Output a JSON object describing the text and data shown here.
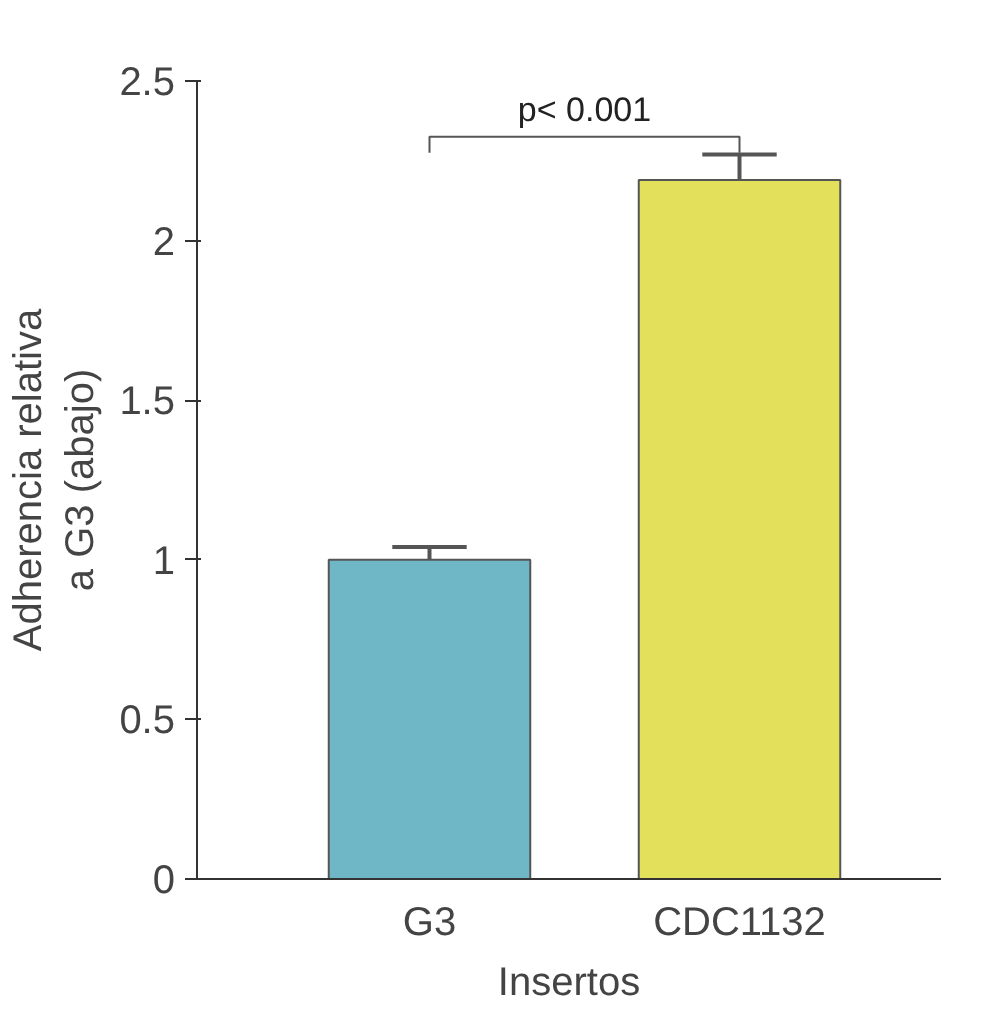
{
  "chart_data": {
    "type": "bar",
    "categories": [
      "G3",
      "CDC1132"
    ],
    "values": [
      1.0,
      2.19
    ],
    "colors": [
      "#6fb7c7",
      "#e3e05c"
    ],
    "errors": [
      [
        1.0,
        1.04
      ],
      [
        2.19,
        2.27
      ]
    ],
    "ylim": [
      0,
      2.5
    ],
    "yticks": [
      0,
      0.5,
      1,
      1.5,
      2,
      2.5
    ],
    "ylabel": "Adherencia relativa a G3 (abajo)",
    "xlabel": "Insertos",
    "annotations": [
      "p< 0.001"
    ]
  }
}
